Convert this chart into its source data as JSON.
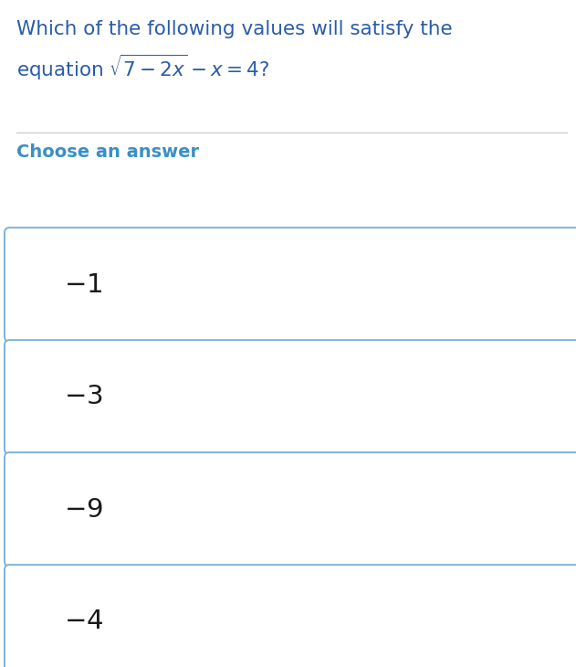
{
  "title_line1": "Which of the following values will satisfy the",
  "title_line2": "equation $\\sqrt{7-2x}-x=4$?",
  "section_label": "Choose an answer",
  "choices": [
    "-1",
    "-3",
    "-9",
    "-4"
  ],
  "bg_color": "#ffffff",
  "title_color": "#2a5caa",
  "section_color": "#3a8fc7",
  "box_border_color": "#7ab3d8",
  "choice_text_color": "#1a1a1a",
  "divider_color": "#cccccc",
  "title_fontsize": 15.5,
  "section_fontsize": 14,
  "choice_fontsize": 21,
  "fig_width": 6.31,
  "fig_height": 7.3,
  "dpi": 100
}
